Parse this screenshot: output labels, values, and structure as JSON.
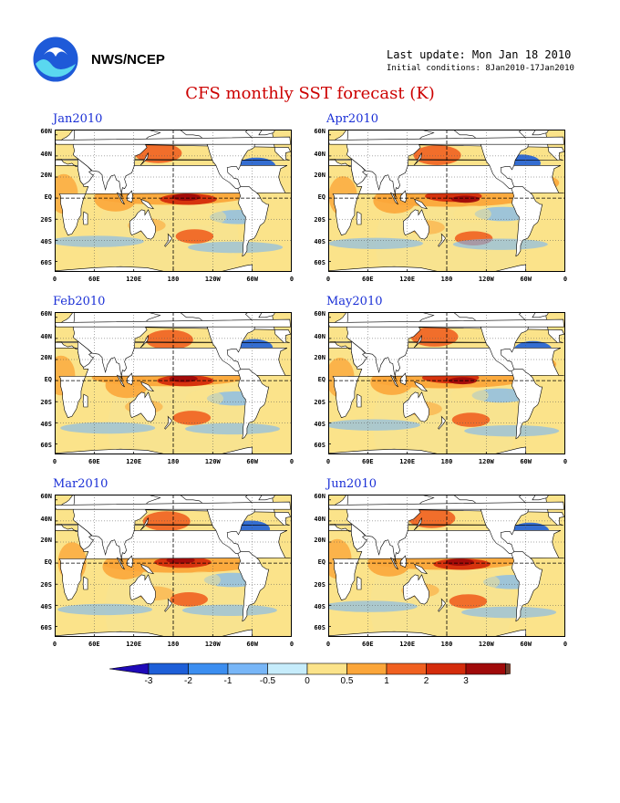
{
  "header": {
    "agency": "NWS/NCEP",
    "last_update": "Last update: Mon Jan 18 2010",
    "initial_conditions": "Initial conditions: 8Jan2010-17Jan2010",
    "title": "CFS monthly SST forecast (K)"
  },
  "chart_data": {
    "type": "heatmap",
    "title": "CFS monthly SST forecast (K)",
    "panels": [
      {
        "name": "Jan2010",
        "lat_labels": [
          "60N",
          "40N",
          "20N",
          "EQ",
          "20S",
          "40S",
          "60S"
        ],
        "lon_labels": [
          "0",
          "60E",
          "120E",
          "180",
          "120W",
          "60W",
          "0"
        ]
      },
      {
        "name": "Apr2010",
        "lat_labels": [
          "60N",
          "40N",
          "20N",
          "EQ",
          "20S",
          "40S",
          "60S"
        ],
        "lon_labels": [
          "0",
          "60E",
          "120E",
          "180",
          "120W",
          "60W",
          "0"
        ]
      },
      {
        "name": "Feb2010",
        "lat_labels": [
          "60N",
          "40N",
          "20N",
          "EQ",
          "20S",
          "40S",
          "60S"
        ],
        "lon_labels": [
          "0",
          "60E",
          "120E",
          "180",
          "120W",
          "60W",
          "0"
        ]
      },
      {
        "name": "May2010",
        "lat_labels": [
          "60N",
          "40N",
          "20N",
          "EQ",
          "20S",
          "40S",
          "60S"
        ],
        "lon_labels": [
          "0",
          "60E",
          "120E",
          "180",
          "120W",
          "60W",
          "0"
        ]
      },
      {
        "name": "Mar2010",
        "lat_labels": [
          "60N",
          "40N",
          "20N",
          "EQ",
          "20S",
          "40S",
          "60S"
        ],
        "lon_labels": [
          "0",
          "60E",
          "120E",
          "180",
          "120W",
          "60W",
          "0"
        ]
      },
      {
        "name": "Jun2010",
        "lat_labels": [
          "60N",
          "40N",
          "20N",
          "EQ",
          "20S",
          "40S",
          "60S"
        ],
        "lon_labels": [
          "0",
          "60E",
          "120E",
          "180",
          "120W",
          "60W",
          "0"
        ]
      }
    ],
    "colorbar": {
      "ticks": [
        "-3",
        "-2",
        "-1",
        "-0.5",
        "0",
        "0.5",
        "1",
        "2",
        "3"
      ],
      "colors": [
        "#1f0ab8",
        "#1e5fd8",
        "#3c8ef0",
        "#78b6f7",
        "#c6ecfb",
        "#fbe38a",
        "#fba63a",
        "#f06020",
        "#d42c0c",
        "#a00a0a",
        "#6e4030"
      ]
    }
  }
}
